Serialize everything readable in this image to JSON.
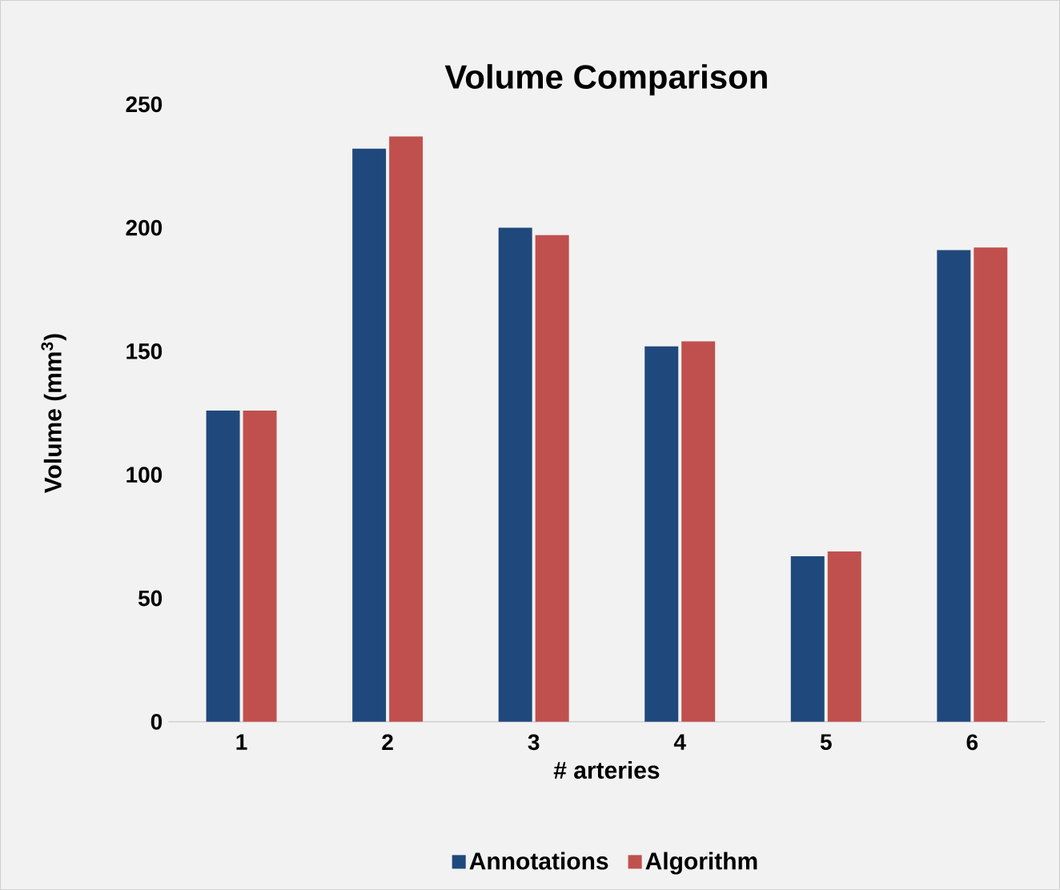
{
  "chart_data": {
    "type": "bar",
    "title": "Volume Comparison",
    "xlabel": "# arteries",
    "ylabel": "Volume (mm$^{3}$)",
    "categories": [
      "1",
      "2",
      "3",
      "4",
      "5",
      "6"
    ],
    "series": [
      {
        "name": "Annotations",
        "color": "#1f497d",
        "values": [
          126,
          232,
          200,
          152,
          67,
          191
        ]
      },
      {
        "name": "Algorithm",
        "color": "#c0504d",
        "values": [
          126,
          237,
          197,
          154,
          69,
          192
        ]
      }
    ],
    "ylim": [
      0,
      250
    ],
    "yticks": [
      0,
      50,
      100,
      150,
      200,
      250
    ],
    "legend": "bottom"
  }
}
